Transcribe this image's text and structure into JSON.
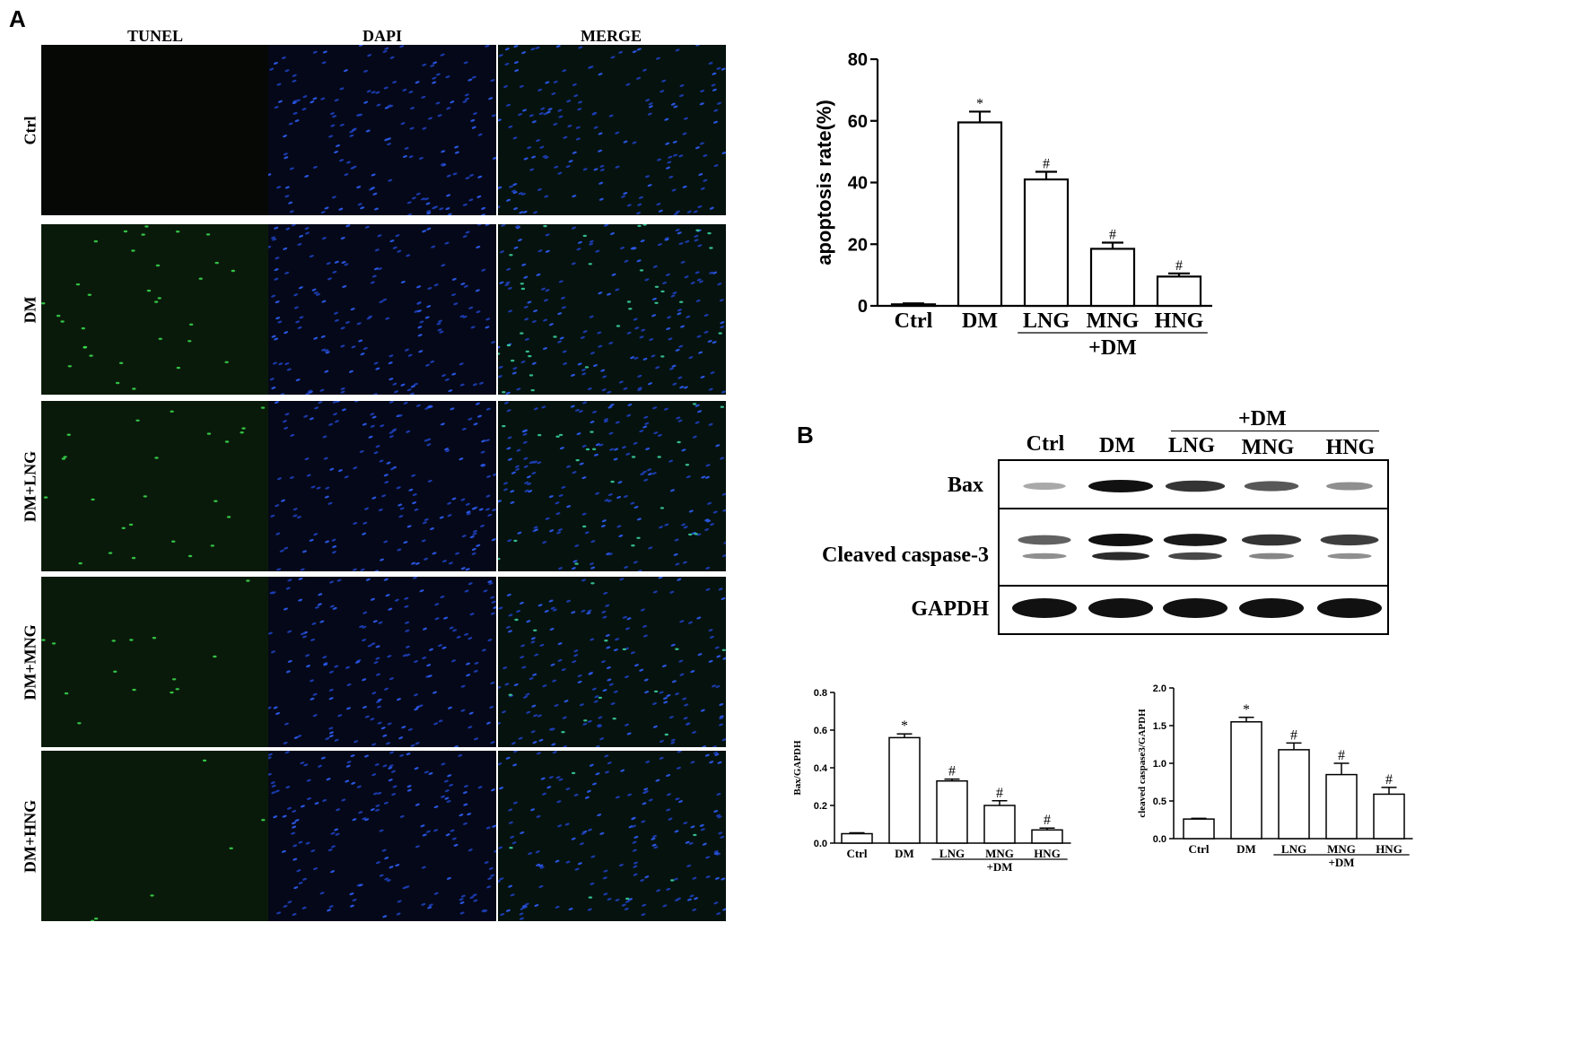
{
  "panels": {
    "a": "A",
    "b": "B"
  },
  "micrograph": {
    "columns": [
      "TUNEL",
      "DAPI",
      "MERGE"
    ],
    "rows": [
      "Ctrl",
      "DM",
      "DM+LNG",
      "DM+MNG",
      "DM+HNG"
    ],
    "tunel_intensity": [
      0.0,
      0.8,
      0.6,
      0.35,
      0.15
    ]
  },
  "western": {
    "group_label": "+DM",
    "lanes": [
      "Ctrl",
      "DM",
      "LNG",
      "MNG",
      "HNG"
    ],
    "proteins": [
      "Bax",
      "Cleaved caspase-3",
      "GAPDH"
    ],
    "band_intensity": {
      "Bax": [
        0.15,
        1.0,
        0.8,
        0.6,
        0.3
      ],
      "Cleaved caspase-3 upper": [
        0.55,
        1.0,
        0.95,
        0.8,
        0.75
      ],
      "Cleaved caspase-3 lower": [
        0.3,
        0.85,
        0.7,
        0.35,
        0.3
      ],
      "GAPDH": [
        1.0,
        1.0,
        1.0,
        1.0,
        1.0
      ]
    }
  },
  "chart_data": [
    {
      "type": "bar",
      "ylabel": "apoptosis rate(%)",
      "categories": [
        "Ctrl",
        "DM",
        "LNG",
        "MNG",
        "HNG"
      ],
      "values": [
        0.5,
        59.5,
        41,
        18.5,
        9.5
      ],
      "errors": [
        0.3,
        3.5,
        2.5,
        2,
        1
      ],
      "markers": [
        "",
        "*",
        "#",
        "#",
        "#"
      ],
      "group_label": "+DM",
      "ylim": [
        0,
        80
      ],
      "yticks": [
        "0",
        "20",
        "40",
        "60",
        "80"
      ]
    },
    {
      "type": "bar",
      "ylabel": "Bax/GAPDH",
      "categories": [
        "Ctrl",
        "DM",
        "LNG",
        "MNG",
        "HNG"
      ],
      "values": [
        0.05,
        0.56,
        0.33,
        0.2,
        0.07
      ],
      "errors": [
        0.005,
        0.02,
        0.01,
        0.025,
        0.01
      ],
      "markers": [
        "",
        "*",
        "#",
        "#",
        "#"
      ],
      "group_label": "+DM",
      "ylim": [
        0,
        0.8
      ],
      "yticks": [
        "0.0",
        "0.2",
        "0.4",
        "0.6",
        "0.8"
      ]
    },
    {
      "type": "bar",
      "ylabel": "cleaved caspase3/GAPDH",
      "categories": [
        "Ctrl",
        "DM",
        "LNG",
        "MNG",
        "HNG"
      ],
      "values": [
        0.26,
        1.55,
        1.18,
        0.85,
        0.59
      ],
      "errors": [
        0.01,
        0.06,
        0.09,
        0.15,
        0.09
      ],
      "markers": [
        "",
        "*",
        "#",
        "#",
        "#"
      ],
      "group_label": "+DM",
      "ylim": [
        0,
        2.0
      ],
      "yticks": [
        "0.0",
        "0.5",
        "1.0",
        "1.5",
        "2.0"
      ]
    }
  ]
}
